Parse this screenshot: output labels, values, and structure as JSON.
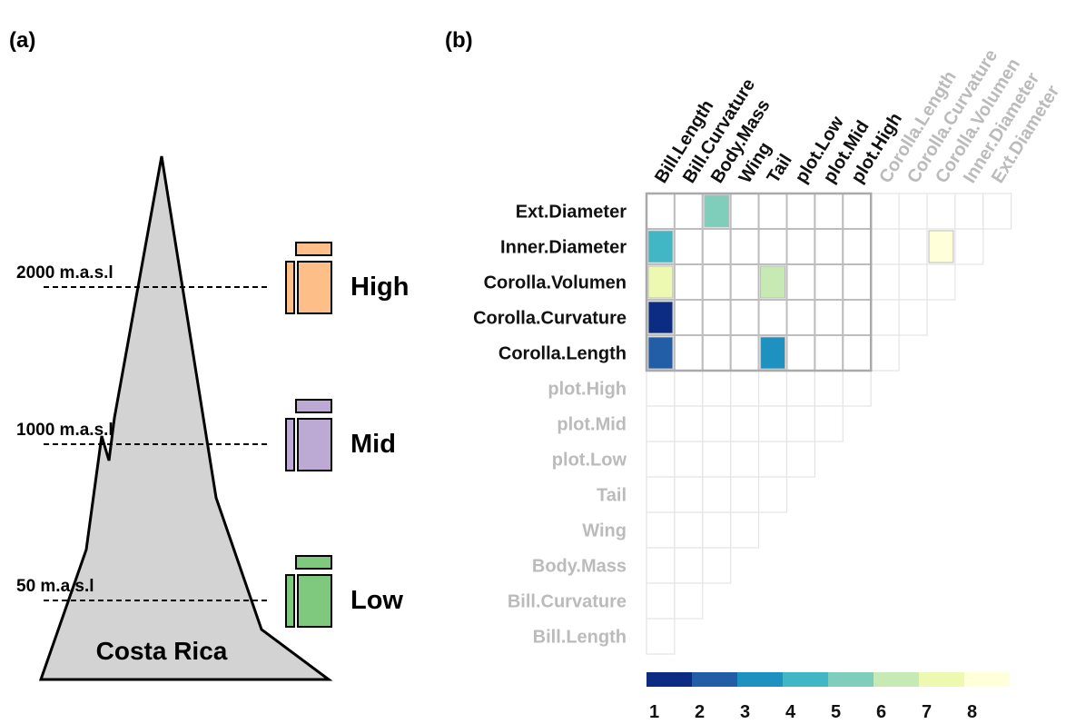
{
  "panel_a": {
    "label": "(a)",
    "region": "Costa Rica",
    "elevations": [
      {
        "label": "2000 m.a.s.l",
        "zone": "High"
      },
      {
        "label": "1000 m.a.s.l",
        "zone": "Mid"
      },
      {
        "label": "50 m.a.s.l",
        "zone": "Low"
      }
    ]
  },
  "panel_b": {
    "label": "(b)"
  },
  "chart_data": {
    "type": "heatmap",
    "rows": [
      "Ext.Diameter",
      "Inner.Diameter",
      "Corolla.Volumen",
      "Corolla.Curvature",
      "Corolla.Length",
      "plot.High",
      "plot.Mid",
      "plot.Low",
      "Tail",
      "Wing",
      "Body.Mass",
      "Bill.Curvature",
      "Bill.Length"
    ],
    "columns": [
      "Bill.Length",
      "Bill.Curvature",
      "Body.Mass",
      "Wing",
      "Tail",
      "plot.Low",
      "plot.Mid",
      "plot.High",
      "Corolla.Length",
      "Corolla.Curvature",
      "Corolla.Volumen",
      "Inner.Diameter",
      "Ext.Diameter"
    ],
    "z": [
      [
        null,
        null,
        5,
        null,
        null,
        null,
        null,
        null,
        null,
        null,
        null,
        null,
        null
      ],
      [
        4,
        null,
        null,
        null,
        null,
        null,
        null,
        null,
        null,
        null,
        8,
        null,
        null
      ],
      [
        7,
        null,
        null,
        null,
        6,
        null,
        null,
        null,
        null,
        null,
        null,
        null,
        null
      ],
      [
        1,
        null,
        null,
        null,
        null,
        null,
        null,
        null,
        null,
        null,
        null,
        null,
        null
      ],
      [
        2,
        null,
        null,
        null,
        3,
        null,
        null,
        null,
        null,
        null,
        null,
        null,
        null
      ],
      [
        null,
        null,
        null,
        null,
        null,
        null,
        null,
        null,
        null,
        null,
        null,
        null,
        null
      ],
      [
        null,
        null,
        null,
        null,
        null,
        null,
        null,
        null,
        null,
        null,
        null,
        null,
        null
      ],
      [
        null,
        null,
        null,
        null,
        null,
        null,
        null,
        null,
        null,
        null,
        null,
        null,
        null
      ],
      [
        null,
        null,
        null,
        null,
        null,
        null,
        null,
        null,
        null,
        null,
        null,
        null,
        null
      ],
      [
        null,
        null,
        null,
        null,
        null,
        null,
        null,
        null,
        null,
        null,
        null,
        null,
        null
      ],
      [
        null,
        null,
        null,
        null,
        null,
        null,
        null,
        null,
        null,
        null,
        null,
        null,
        null
      ],
      [
        null,
        null,
        null,
        null,
        null,
        null,
        null,
        null,
        null,
        null,
        null,
        null,
        null
      ],
      [
        null,
        null,
        null,
        null,
        null,
        null,
        null,
        null,
        null,
        null,
        null,
        null,
        null
      ]
    ],
    "colorscale": {
      "colors": [
        "#0c2c84",
        "#225ea8",
        "#1d91c0",
        "#41b6c4",
        "#7fcdbb",
        "#c7e9b4",
        "#edf8b1",
        "#ffffd9"
      ],
      "ticks": [
        1,
        2,
        3,
        4,
        5,
        6,
        7,
        8
      ]
    }
  }
}
